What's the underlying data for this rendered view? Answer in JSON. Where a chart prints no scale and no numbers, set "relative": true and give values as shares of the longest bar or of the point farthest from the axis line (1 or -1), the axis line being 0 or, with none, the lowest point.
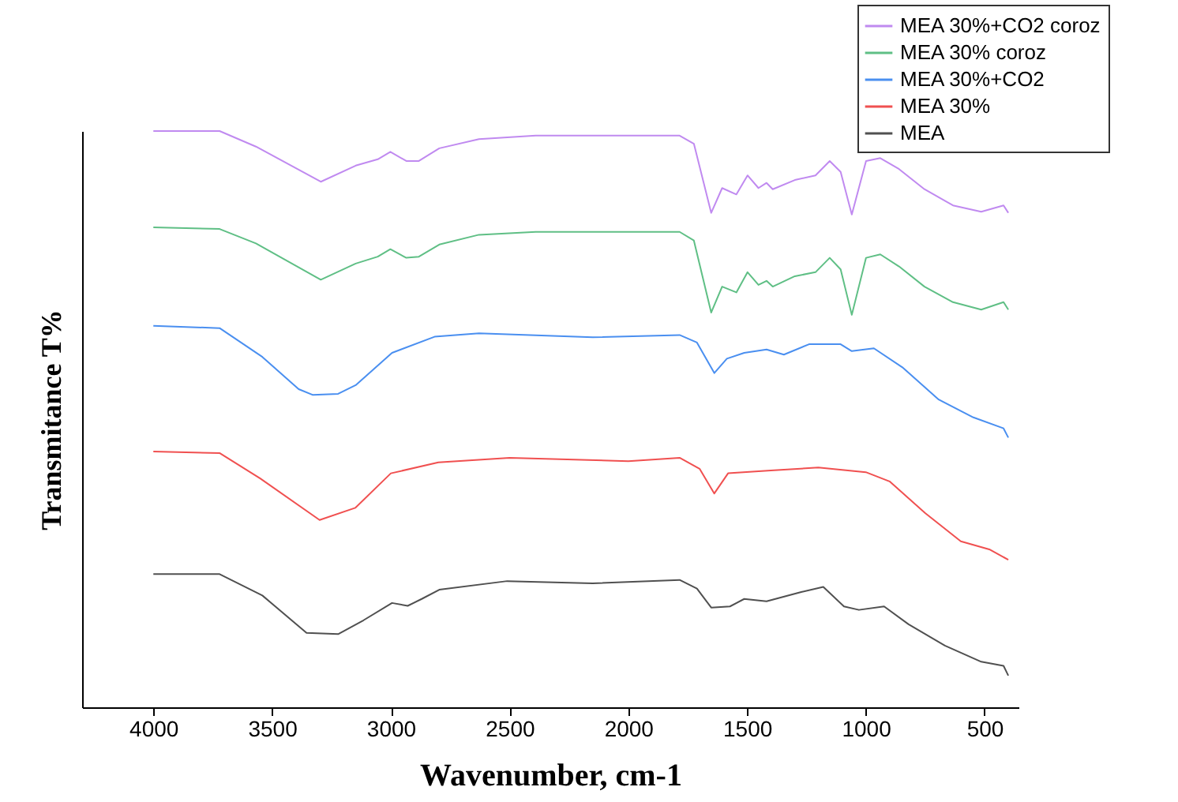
{
  "chart_data": {
    "type": "line",
    "xlabel": "Wavenumber, cm-1",
    "ylabel": "Transmitance T%",
    "relative": true,
    "xlim": [
      4300,
      357
    ],
    "xticks": [
      4000,
      3500,
      3000,
      2500,
      2000,
      1500,
      1000,
      500
    ],
    "grid": false,
    "legend": "top right",
    "marker": "none",
    "line_style": "solid",
    "series": [
      {
        "name": "MEA 30%+CO2 coroz",
        "color": "#c08af0",
        "x": [
          4000,
          3721,
          3568,
          3295,
          3148,
          3055,
          3002,
          2935,
          2882,
          2796,
          2629,
          2390,
          1784,
          1724,
          1651,
          1605,
          1545,
          1498,
          1452,
          1418,
          1392,
          1299,
          1212,
          1152,
          1106,
          1059,
          999,
          939,
          860,
          753,
          633,
          514,
          420,
          400
        ],
        "values": [
          1.0,
          1.0,
          0.973,
          0.912,
          0.94,
          0.951,
          0.964,
          0.948,
          0.948,
          0.97,
          0.986,
          0.992,
          0.992,
          0.978,
          0.858,
          0.901,
          0.89,
          0.923,
          0.901,
          0.91,
          0.899,
          0.915,
          0.923,
          0.948,
          0.929,
          0.855,
          0.948,
          0.953,
          0.934,
          0.899,
          0.871,
          0.86,
          0.871,
          0.858
        ]
      },
      {
        "name": "MEA 30% coroz",
        "color": "#5fbf85",
        "x": [
          4000,
          3721,
          3568,
          3295,
          3148,
          3055,
          3002,
          2935,
          2882,
          2796,
          2629,
          2390,
          1784,
          1724,
          1651,
          1605,
          1545,
          1498,
          1452,
          1418,
          1392,
          1299,
          1212,
          1152,
          1106,
          1059,
          999,
          939,
          860,
          753,
          633,
          514,
          420,
          400
        ],
        "values": [
          0.833,
          0.83,
          0.805,
          0.742,
          0.77,
          0.782,
          0.795,
          0.78,
          0.782,
          0.803,
          0.82,
          0.825,
          0.825,
          0.81,
          0.685,
          0.73,
          0.72,
          0.755,
          0.733,
          0.74,
          0.73,
          0.748,
          0.755,
          0.78,
          0.76,
          0.681,
          0.78,
          0.786,
          0.765,
          0.73,
          0.703,
          0.69,
          0.703,
          0.69
        ]
      },
      {
        "name": "MEA 30%+CO2",
        "color": "#4a8ff0",
        "x": [
          4000,
          3721,
          3541,
          3388,
          3328,
          3222,
          3148,
          2995,
          2816,
          2629,
          2150,
          1784,
          1711,
          1638,
          1585,
          1512,
          1418,
          1345,
          1239,
          1106,
          1059,
          966,
          846,
          693,
          547,
          420,
          400
        ],
        "values": [
          0.662,
          0.658,
          0.608,
          0.552,
          0.542,
          0.544,
          0.559,
          0.615,
          0.643,
          0.649,
          0.642,
          0.646,
          0.633,
          0.58,
          0.605,
          0.615,
          0.621,
          0.612,
          0.63,
          0.63,
          0.618,
          0.623,
          0.59,
          0.534,
          0.503,
          0.484,
          0.468
        ]
      },
      {
        "name": "MEA 30%",
        "color": "#f05050",
        "x": [
          4000,
          3720,
          3550,
          3300,
          3150,
          3000,
          2800,
          2500,
          2000,
          1784,
          1700,
          1638,
          1580,
          1400,
          1200,
          1000,
          900,
          750,
          600,
          480,
          400
        ],
        "values": [
          0.444,
          0.441,
          0.397,
          0.325,
          0.346,
          0.406,
          0.425,
          0.433,
          0.427,
          0.433,
          0.414,
          0.371,
          0.406,
          0.411,
          0.416,
          0.408,
          0.392,
          0.337,
          0.288,
          0.274,
          0.256
        ]
      },
      {
        "name": "MEA",
        "color": "#505050",
        "x": [
          4000,
          3721,
          3541,
          3355,
          3222,
          3115,
          2995,
          2929,
          2870,
          2796,
          2510,
          2150,
          1784,
          1711,
          1651,
          1572,
          1512,
          1418,
          1272,
          1179,
          1092,
          1029,
          923,
          820,
          667,
          514,
          420,
          400
        ],
        "values": [
          0.231,
          0.231,
          0.194,
          0.129,
          0.127,
          0.151,
          0.181,
          0.176,
          0.188,
          0.204,
          0.219,
          0.215,
          0.221,
          0.206,
          0.173,
          0.175,
          0.188,
          0.184,
          0.2,
          0.209,
          0.175,
          0.169,
          0.175,
          0.144,
          0.107,
          0.079,
          0.072,
          0.055
        ]
      }
    ]
  }
}
